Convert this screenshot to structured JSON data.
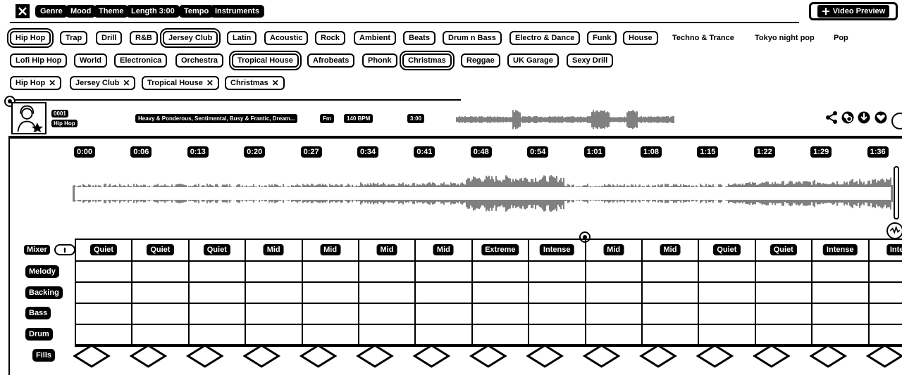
{
  "toolbar": {
    "tabs": [
      "Genre",
      "Mood",
      "Theme",
      "Length 3:00",
      "Tempo",
      "Instruments"
    ],
    "video_preview_label": "Video Preview"
  },
  "genres": [
    {
      "label": "Hip Hop",
      "selected": true
    },
    {
      "label": "Trap",
      "selected": false
    },
    {
      "label": "Drill",
      "selected": false
    },
    {
      "label": "R&B",
      "selected": false
    },
    {
      "label": "Jersey Club",
      "selected": true
    },
    {
      "label": "Latin",
      "selected": false
    },
    {
      "label": "Acoustic",
      "selected": false
    },
    {
      "label": "Rock",
      "selected": false
    },
    {
      "label": "Ambient",
      "selected": false
    },
    {
      "label": "Beats",
      "selected": false
    },
    {
      "label": "Drum n Bass",
      "selected": false
    },
    {
      "label": "Electro & Dance",
      "selected": false
    },
    {
      "label": "Funk",
      "selected": false
    },
    {
      "label": "House",
      "selected": false
    },
    {
      "label": "Techno & Trance",
      "selected": false
    },
    {
      "label": "Tokyo night pop",
      "selected": false
    },
    {
      "label": "Pop",
      "selected": false
    },
    {
      "label": "Lofi Hip Hop",
      "selected": false
    },
    {
      "label": "World",
      "selected": false
    },
    {
      "label": "Electronica",
      "selected": false
    },
    {
      "label": "Orchestra",
      "selected": false
    },
    {
      "label": "Tropical House",
      "selected": true
    },
    {
      "label": "Afrobeats",
      "selected": false
    },
    {
      "label": "Phonk",
      "selected": false
    },
    {
      "label": "Christmas",
      "selected": true
    },
    {
      "label": "Reggae",
      "selected": false
    },
    {
      "label": "UK Garage",
      "selected": false
    },
    {
      "label": "Sexy Drill",
      "selected": false
    }
  ],
  "active_filters": [
    "Hip Hop",
    "Jersey Club",
    "Tropical House",
    "Christmas"
  ],
  "song": {
    "number": "0001",
    "genre": "Hip Hop",
    "moods": "Heavy & Ponderous, Sentimental, Busy & Frantic, Dream...",
    "key": "Fm",
    "bpm": "140 BPM",
    "length": "3:00"
  },
  "actions": [
    "share-icon",
    "remix-icon",
    "download-icon",
    "heart-icon"
  ],
  "timeline": [
    "0:00",
    "0:06",
    "0:13",
    "0:20",
    "0:27",
    "0:34",
    "0:41",
    "0:48",
    "0:54",
    "1:01",
    "1:08",
    "1:15",
    "1:22",
    "1:29",
    "1:36"
  ],
  "mixer": {
    "label": "Mixer",
    "segments": [
      "Quiet",
      "Quiet",
      "Quiet",
      "Mid",
      "Mid",
      "Mid",
      "Mid",
      "Extreme",
      "Intense",
      "Mid",
      "Mid",
      "Quiet",
      "Quiet",
      "Intense",
      "Inte"
    ],
    "tracks": [
      "Melody",
      "Backing",
      "Bass",
      "Drum",
      "Fills"
    ]
  }
}
